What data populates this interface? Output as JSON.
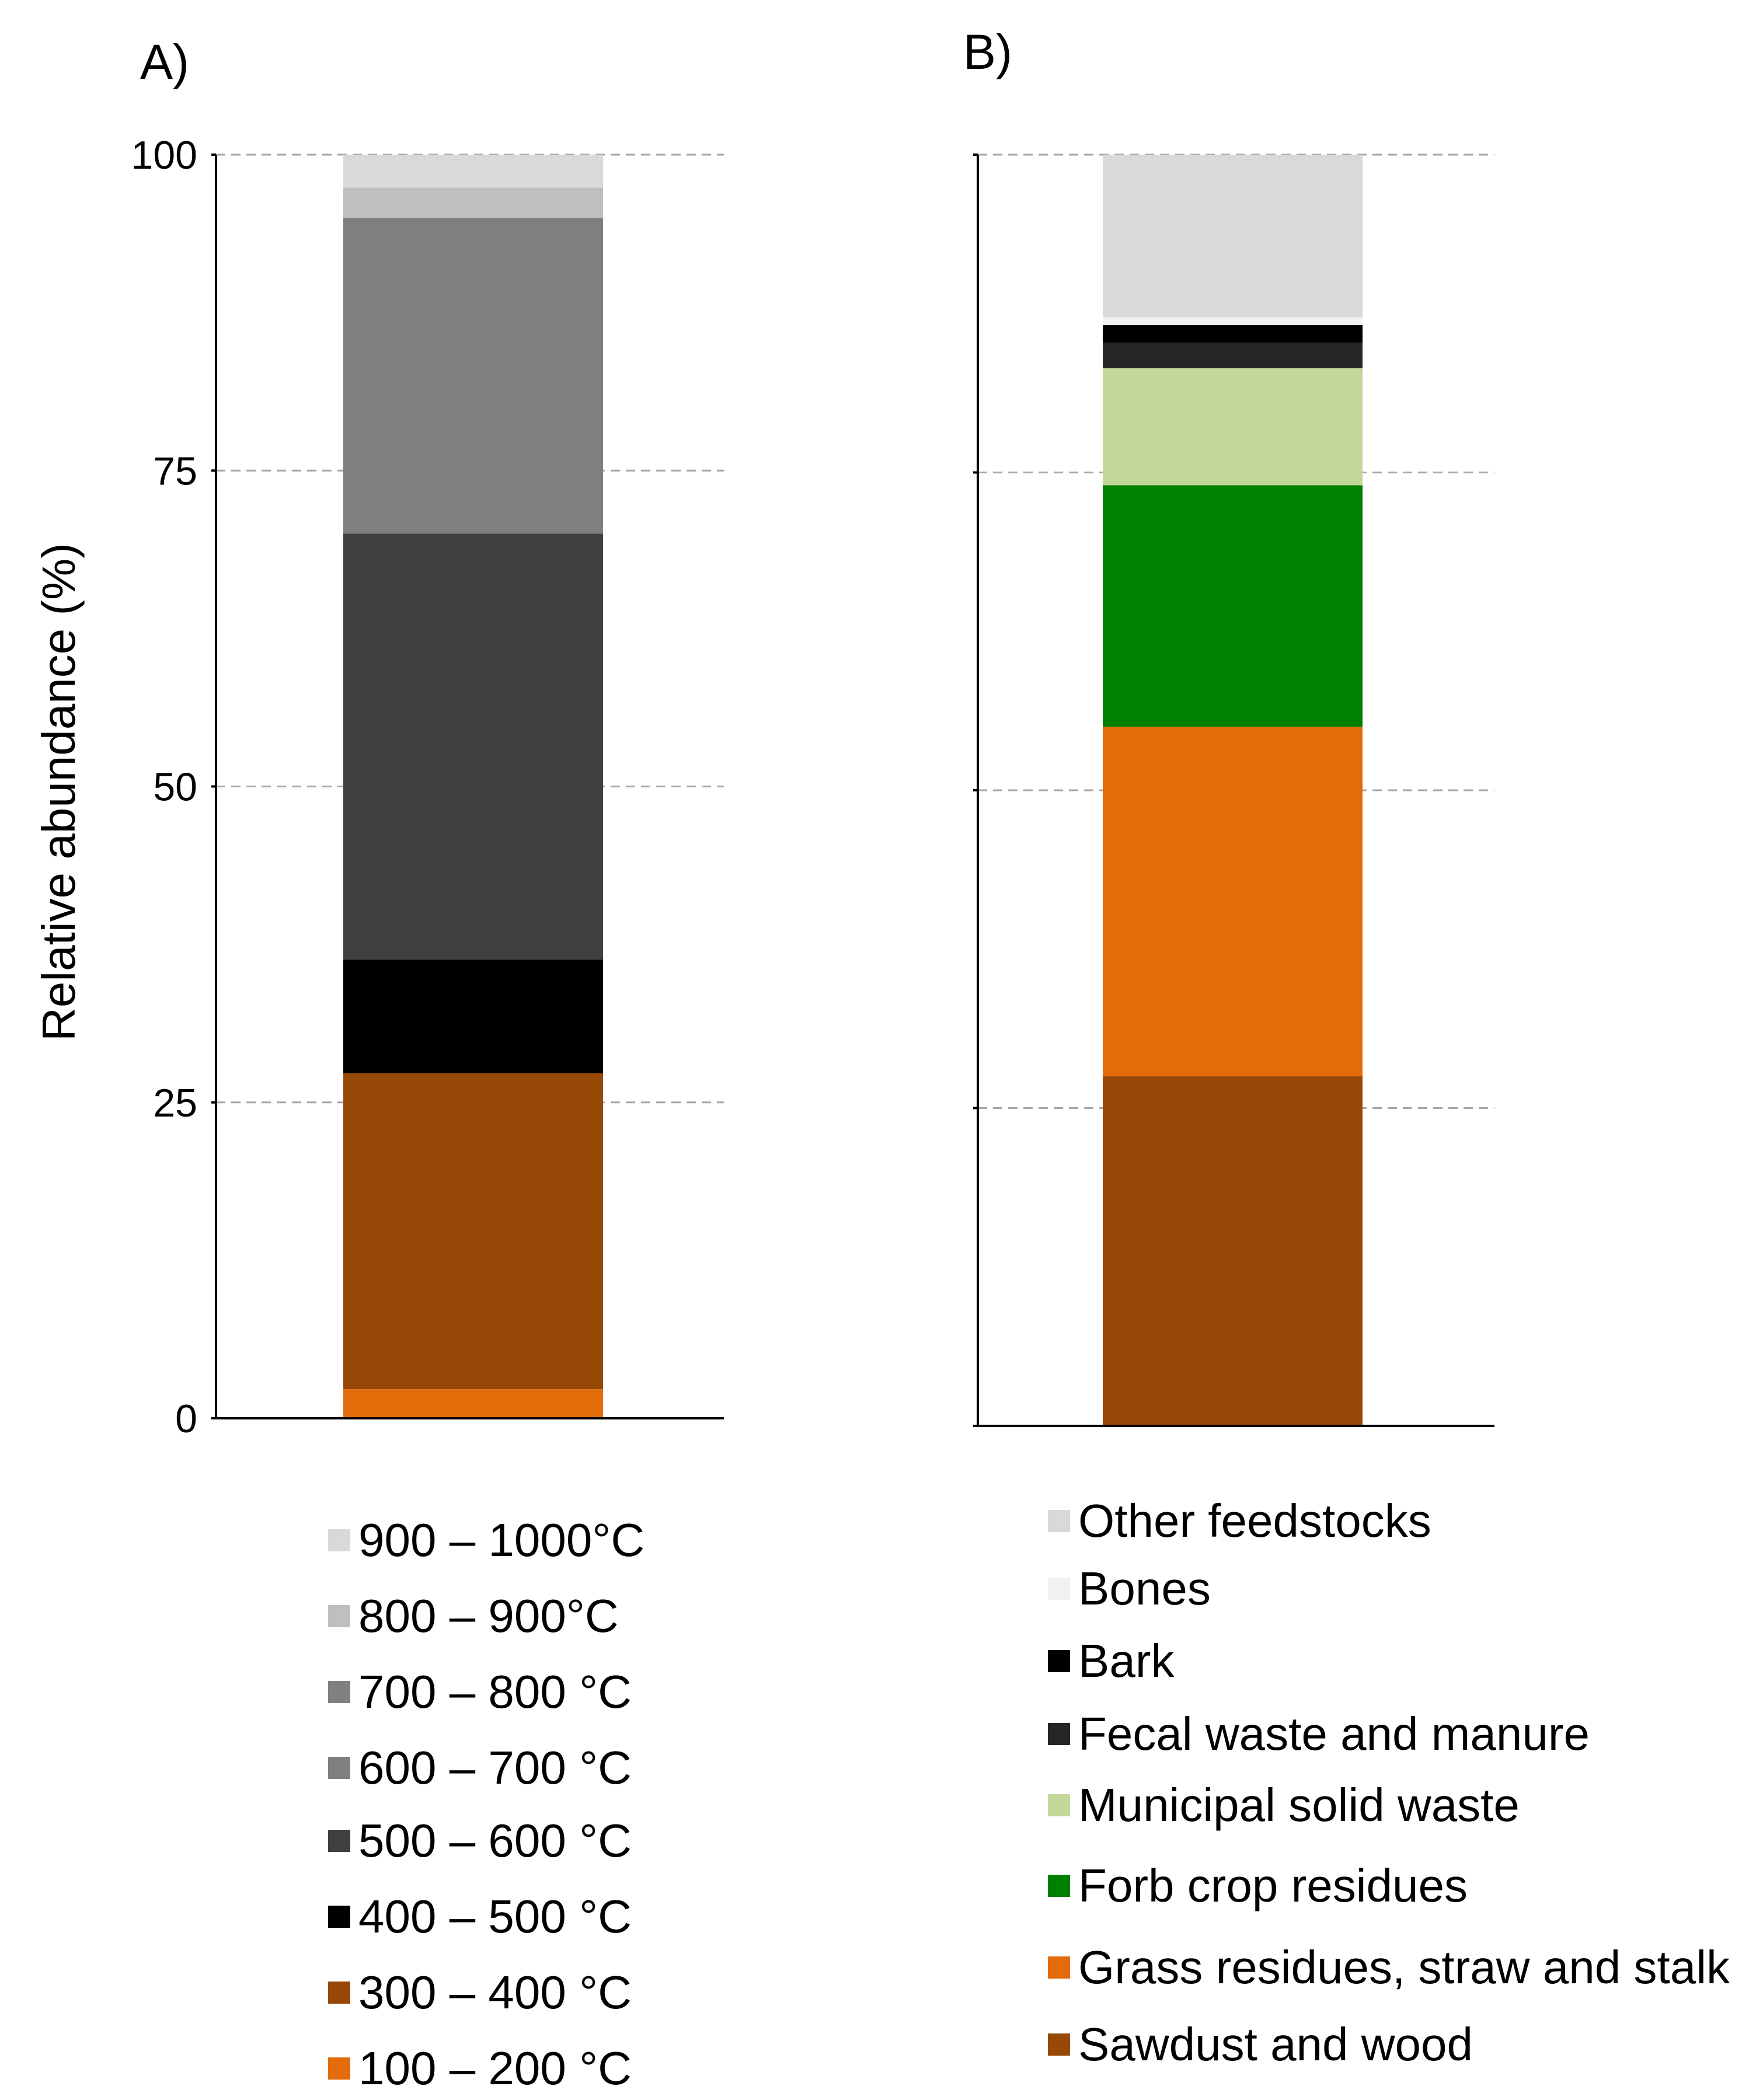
{
  "chart_data": [
    {
      "panel": "A)",
      "type": "bar",
      "stacked": true,
      "ylabel": "Relative abundance (%)",
      "ylim": [
        0,
        100
      ],
      "yticks": [
        0,
        25,
        50,
        75,
        100
      ],
      "grid": true,
      "segments": [
        {
          "name": "100 – 200 °C",
          "value": 2.3,
          "color": "#E36C0A"
        },
        {
          "name": "300 – 400 °C",
          "value": 25,
          "color": "#984806"
        },
        {
          "name": "400 – 500 °C",
          "value": 9,
          "color": "#000000"
        },
        {
          "name": "500 – 600 °C",
          "value": 33.7,
          "color": "#404040"
        },
        {
          "name": "600 – 700 °C",
          "value": 25,
          "color": "#7F7F7F"
        },
        {
          "name": "700 – 800 °C",
          "value": 0,
          "color": "#808080"
        },
        {
          "name": "800 – 900°C",
          "value": 2.4,
          "color": "#BFBFBF"
        },
        {
          "name": "900 – 1000°C",
          "value": 2.6,
          "color": "#D9D9D9"
        }
      ]
    },
    {
      "panel": "B)",
      "type": "bar",
      "stacked": true,
      "ylim": [
        0,
        100
      ],
      "yticks": [
        0,
        25,
        50,
        75,
        100
      ],
      "grid": true,
      "segments": [
        {
          "name": "Sawdust and wood",
          "value": 27.5,
          "color": "#984806"
        },
        {
          "name": "Grass residues, straw and stalk",
          "value": 27.5,
          "color": "#E36C0A"
        },
        {
          "name": "Forb crop residues",
          "value": 19,
          "color": "#008000"
        },
        {
          "name": "Municipal solid waste",
          "value": 9.2,
          "color": "#C4D79B"
        },
        {
          "name": "Fecal waste and manure",
          "value": 2,
          "color": "#262626"
        },
        {
          "name": "Bark",
          "value": 1.4,
          "color": "#000000"
        },
        {
          "name": "Bones",
          "value": 0.6,
          "color": "#F2F2F2"
        },
        {
          "name": "Other feedstocks",
          "value": 12.8,
          "color": "#D9D9D9"
        }
      ]
    }
  ]
}
